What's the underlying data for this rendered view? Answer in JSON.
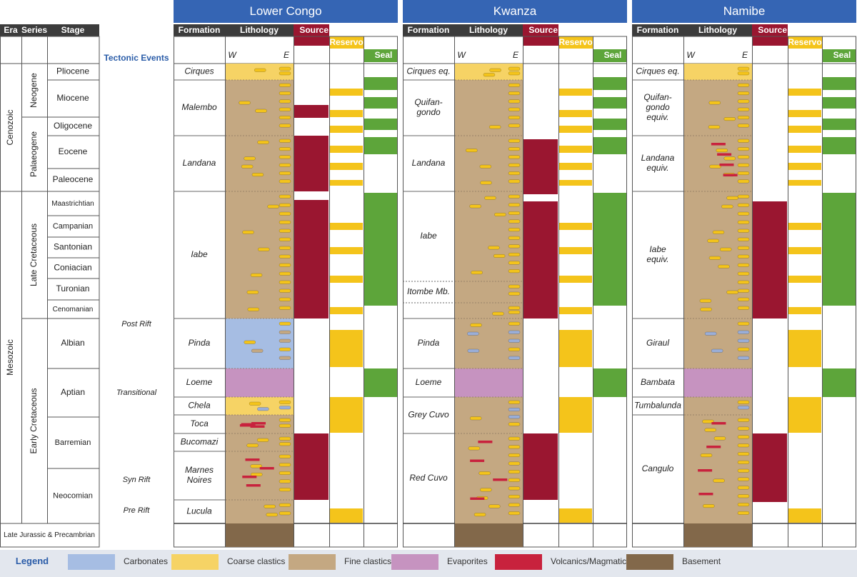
{
  "basins": [
    {
      "name": "Lower Congo",
      "formations": [
        {
          "name": "Cirques",
          "top": 89,
          "bot": 112,
          "fill": "coarse"
        },
        {
          "name": "Malembo",
          "top": 112,
          "bot": 190,
          "fill": "fine"
        },
        {
          "name": "Landana",
          "top": 190,
          "bot": 268,
          "fill": "fine"
        },
        {
          "name": "Iabe",
          "top": 268,
          "bot": 446,
          "fill": "fine"
        },
        {
          "name": "Pinda",
          "top": 446,
          "bot": 516,
          "fill": "carb"
        },
        {
          "name": "Loeme",
          "top": 516,
          "bot": 556,
          "fill": "evap"
        },
        {
          "name": "Chela",
          "top": 556,
          "bot": 581,
          "fill": "coarse"
        },
        {
          "name": "Toca",
          "top": 581,
          "bot": 607,
          "fill": "fine"
        },
        {
          "name": "Bucomazi",
          "top": 607,
          "bot": 632,
          "fill": "fine"
        },
        {
          "name": "Marnes\nNoires",
          "top": 632,
          "bot": 700,
          "fill": "fine"
        },
        {
          "name": "Lucula",
          "top": 700,
          "bot": 733,
          "fill": "fine"
        }
      ],
      "source": [
        [
          147,
          165
        ],
        [
          190,
          268
        ],
        [
          280,
          446
        ],
        [
          607,
          700
        ]
      ],
      "reservoir": [
        [
          124,
          134
        ],
        [
          154,
          164
        ],
        [
          176,
          186
        ],
        [
          204,
          214
        ],
        [
          228,
          238
        ],
        [
          252,
          260
        ],
        [
          312,
          322
        ],
        [
          346,
          356
        ],
        [
          386,
          396
        ],
        [
          430,
          440
        ],
        [
          462,
          514
        ],
        [
          556,
          606
        ],
        [
          712,
          732
        ]
      ],
      "seal": [
        [
          108,
          126
        ],
        [
          136,
          152
        ],
        [
          166,
          182
        ],
        [
          192,
          216
        ],
        [
          270,
          428
        ],
        [
          516,
          556
        ]
      ]
    },
    {
      "name": "Kwanza",
      "formations": [
        {
          "name": "Cirques eq.",
          "top": 89,
          "bot": 112,
          "fill": "coarse"
        },
        {
          "name": "Quifan-\ngondo",
          "top": 112,
          "bot": 190,
          "fill": "fine"
        },
        {
          "name": "Landana",
          "top": 190,
          "bot": 268,
          "fill": "fine"
        },
        {
          "name": "Iabe",
          "top": 268,
          "bot": 394,
          "fill": "fine"
        },
        {
          "name": "Itombe Mb.",
          "top": 394,
          "bot": 424,
          "fill": "fine"
        },
        {
          "name": "",
          "top": 424,
          "bot": 446,
          "fill": "fine"
        },
        {
          "name": "Pinda",
          "top": 446,
          "bot": 516,
          "fill": "fine"
        },
        {
          "name": "Loeme",
          "top": 516,
          "bot": 556,
          "fill": "evap"
        },
        {
          "name": "Grey Cuvo",
          "top": 556,
          "bot": 607,
          "fill": "fine"
        },
        {
          "name": "Red Cuvo",
          "top": 607,
          "bot": 733,
          "fill": "fine"
        }
      ],
      "source": [
        [
          195,
          272
        ],
        [
          282,
          446
        ],
        [
          607,
          700
        ]
      ],
      "reservoir": [
        [
          124,
          134
        ],
        [
          154,
          164
        ],
        [
          176,
          186
        ],
        [
          204,
          214
        ],
        [
          228,
          238
        ],
        [
          252,
          260
        ],
        [
          312,
          322
        ],
        [
          346,
          356
        ],
        [
          386,
          396
        ],
        [
          430,
          440
        ],
        [
          462,
          514
        ],
        [
          556,
          606
        ],
        [
          712,
          732
        ]
      ],
      "seal": [
        [
          108,
          126
        ],
        [
          136,
          152
        ],
        [
          166,
          182
        ],
        [
          192,
          216
        ],
        [
          270,
          428
        ],
        [
          516,
          556
        ]
      ]
    },
    {
      "name": "Namibe",
      "formations": [
        {
          "name": "Cirques eq.",
          "top": 89,
          "bot": 112,
          "fill": "coarse"
        },
        {
          "name": "Quifan-\ngondo\nequiv.",
          "top": 112,
          "bot": 190,
          "fill": "fine"
        },
        {
          "name": "Landana\nequiv.",
          "top": 190,
          "bot": 268,
          "fill": "fine"
        },
        {
          "name": "Iabe\nequiv.",
          "top": 268,
          "bot": 446,
          "fill": "fine"
        },
        {
          "name": "Giraul",
          "top": 446,
          "bot": 516,
          "fill": "fine"
        },
        {
          "name": "Bambata",
          "top": 516,
          "bot": 556,
          "fill": "evap"
        },
        {
          "name": "Tumbalunda",
          "top": 556,
          "bot": 581,
          "fill": "fine"
        },
        {
          "name": "Cangulo",
          "top": 581,
          "bot": 733,
          "fill": "fine"
        }
      ],
      "source": [
        [
          282,
          446
        ],
        [
          607,
          703
        ]
      ],
      "reservoir": [
        [
          124,
          134
        ],
        [
          154,
          164
        ],
        [
          176,
          186
        ],
        [
          204,
          214
        ],
        [
          228,
          238
        ],
        [
          252,
          260
        ],
        [
          312,
          322
        ],
        [
          346,
          356
        ],
        [
          386,
          396
        ],
        [
          430,
          440
        ],
        [
          462,
          514
        ],
        [
          556,
          606
        ],
        [
          712,
          732
        ]
      ],
      "seal": [
        [
          108,
          126
        ],
        [
          136,
          152
        ],
        [
          166,
          182
        ],
        [
          192,
          216
        ],
        [
          270,
          428
        ],
        [
          516,
          556
        ]
      ]
    }
  ],
  "col_headers": {
    "formation": "Formation",
    "lithology": "Lithology",
    "source": "Source rock",
    "reservoir": "Reservoir",
    "seal": "Seal",
    "west": "W",
    "east": "E"
  },
  "left_headers": {
    "era": "Era",
    "series": "Series",
    "stage": "Stage",
    "tectonic": "Tectonic Events"
  },
  "eras": [
    {
      "name": "Cenozoic",
      "top": 89,
      "bot": 268
    },
    {
      "name": "Mesozoic",
      "top": 268,
      "bot": 733
    }
  ],
  "series": [
    {
      "name": "Neogene",
      "top": 89,
      "bot": 164
    },
    {
      "name": "Palaeogene",
      "top": 164,
      "bot": 268
    },
    {
      "name": "Late Cretaceous",
      "top": 268,
      "bot": 446
    },
    {
      "name": "Early Cretaceous",
      "top": 446,
      "bot": 733
    }
  ],
  "stages": [
    {
      "name": "Pliocene",
      "top": 89,
      "bot": 112,
      "size": 12
    },
    {
      "name": "Miocene",
      "top": 112,
      "bot": 164,
      "size": 12
    },
    {
      "name": "Oligocene",
      "top": 164,
      "bot": 190,
      "size": 12
    },
    {
      "name": "Eocene",
      "top": 190,
      "bot": 236,
      "size": 12
    },
    {
      "name": "Paleocene",
      "top": 236,
      "bot": 268,
      "size": 12
    },
    {
      "name": "Maastrichtian",
      "top": 268,
      "bot": 302,
      "size": 10
    },
    {
      "name": "Campanian",
      "top": 302,
      "bot": 332,
      "size": 11
    },
    {
      "name": "Santonian",
      "top": 332,
      "bot": 361,
      "size": 12
    },
    {
      "name": "Coniacian",
      "top": 361,
      "bot": 390,
      "size": 12
    },
    {
      "name": "Turonian",
      "top": 390,
      "bot": 420,
      "size": 12
    },
    {
      "name": "Cenomanian",
      "top": 420,
      "bot": 446,
      "size": 10
    },
    {
      "name": "Albian",
      "top": 446,
      "bot": 516,
      "size": 12
    },
    {
      "name": "Aptian",
      "top": 516,
      "bot": 584,
      "size": 12
    },
    {
      "name": "Barremian",
      "top": 584,
      "bot": 656,
      "size": 11
    },
    {
      "name": "Neocomian",
      "top": 656,
      "bot": 733,
      "size": 11
    }
  ],
  "bottom_stage": "Late Jurassic & Precambrian",
  "tectonic_events": [
    {
      "name": "Post Rift",
      "y": 454
    },
    {
      "name": "Transitional",
      "y": 550
    },
    {
      "name": "Syn Rift",
      "y": 672
    },
    {
      "name": "Pre Rift",
      "y": 715
    }
  ],
  "legend": {
    "title": "Legend",
    "items": [
      {
        "label": "Carbonates",
        "color": "#a6bde3"
      },
      {
        "label": "Coarse clastics",
        "color": "#f6d365"
      },
      {
        "label": "Fine clastics",
        "color": "#c4a882"
      },
      {
        "label": "Evaporites",
        "color": "#c693c0"
      },
      {
        "label": "Volcanics/Magmatics",
        "color": "#c8223d"
      },
      {
        "label": "Basement",
        "color": "#82684a"
      }
    ]
  },
  "colors": {
    "header_blue": "#3565b4",
    "header_dark": "#3c3c3c",
    "source": "#9a1630",
    "reservoir": "#f4c41b",
    "seal": "#5da53a",
    "legend_bg": "#e3e7ee",
    "blue_text": "#2a5ca8"
  }
}
